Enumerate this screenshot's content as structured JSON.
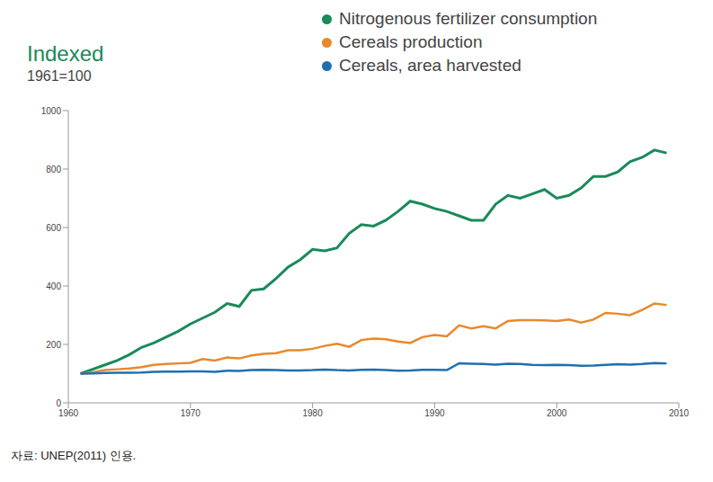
{
  "chart_data": {
    "type": "line",
    "title": "Indexed",
    "subtitle": "1961=100",
    "annotations": [
      "자료: UNEP(2011) 인용."
    ],
    "x": [
      1961,
      1962,
      1963,
      1964,
      1965,
      1966,
      1967,
      1968,
      1969,
      1970,
      1971,
      1972,
      1973,
      1974,
      1975,
      1976,
      1977,
      1978,
      1979,
      1980,
      1981,
      1982,
      1983,
      1984,
      1985,
      1986,
      1987,
      1988,
      1989,
      1990,
      1991,
      1992,
      1993,
      1994,
      1995,
      1996,
      1997,
      1998,
      1999,
      2000,
      2001,
      2002,
      2003,
      2004,
      2005,
      2006,
      2007,
      2008,
      2009
    ],
    "series": [
      {
        "name": "Nitrogenous fertilizer consumption",
        "color": "#1a8a5a",
        "values": [
          100,
          115,
          130,
          145,
          165,
          190,
          205,
          225,
          245,
          270,
          290,
          310,
          340,
          330,
          385,
          390,
          425,
          465,
          490,
          525,
          520,
          530,
          580,
          610,
          605,
          625,
          655,
          690,
          680,
          665,
          655,
          640,
          625,
          625,
          680,
          710,
          700,
          715,
          730,
          700,
          710,
          735,
          775,
          775,
          790,
          825,
          840,
          865,
          855
        ]
      },
      {
        "name": "Cereals production",
        "color": "#e8892c",
        "values": [
          100,
          105,
          112,
          115,
          118,
          122,
          130,
          133,
          135,
          137,
          150,
          145,
          155,
          152,
          162,
          168,
          170,
          180,
          180,
          185,
          195,
          202,
          192,
          215,
          220,
          218,
          210,
          205,
          225,
          232,
          228,
          265,
          255,
          262,
          255,
          280,
          283,
          283,
          282,
          280,
          285,
          275,
          285,
          308,
          305,
          300,
          318,
          340,
          335
        ]
      },
      {
        "name": "Cereals, area harvested",
        "color": "#1f6fb0",
        "values": [
          100,
          101,
          102,
          103,
          103,
          104,
          106,
          107,
          107,
          108,
          108,
          106,
          110,
          109,
          112,
          113,
          112,
          111,
          111,
          112,
          114,
          112,
          111,
          113,
          114,
          112,
          110,
          111,
          113,
          113,
          112,
          135,
          134,
          133,
          131,
          134,
          133,
          130,
          129,
          130,
          129,
          127,
          128,
          130,
          132,
          131,
          133,
          136,
          135
        ]
      }
    ],
    "xlim": [
      1960,
      2010
    ],
    "xticks": [
      1960,
      1970,
      1980,
      1990,
      2000,
      2010
    ],
    "ylim": [
      0,
      1000
    ],
    "yticks": [
      0,
      200,
      400,
      600,
      800,
      1000
    ],
    "grid": false,
    "legend": "top-right"
  }
}
